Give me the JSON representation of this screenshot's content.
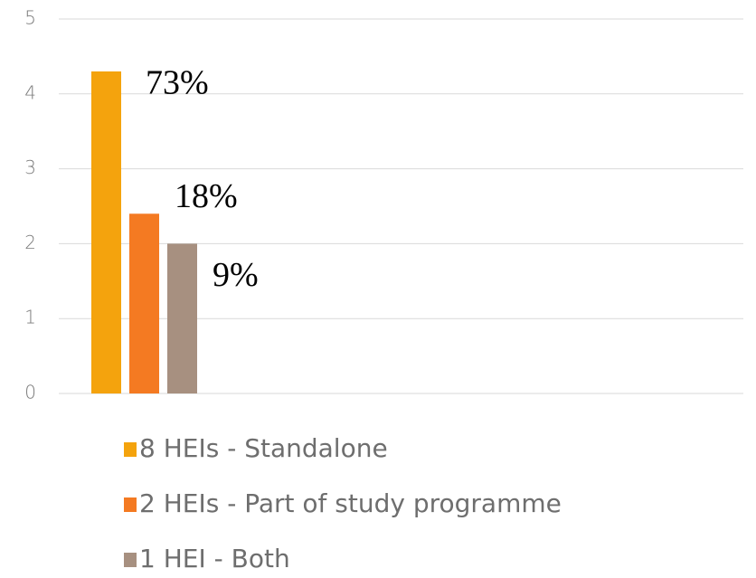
{
  "chart_data": {
    "type": "bar",
    "categories": [
      null
    ],
    "series": [
      {
        "name": "8 HEIs - Standalone",
        "color": "#f4a30d",
        "values": [
          4.3
        ]
      },
      {
        "name": "2 HEIs - Part of study programme",
        "color": "#f47a22",
        "values": [
          2.4
        ]
      },
      {
        "name": "1 HEI - Both",
        "color": "#a79080",
        "values": [
          2.0
        ]
      }
    ],
    "annotations": [
      "73%",
      "18%",
      "9%"
    ],
    "ylim": [
      0,
      5
    ],
    "yticks": [
      0,
      1,
      2,
      3,
      4,
      5
    ],
    "grid": true,
    "legend": "bottom"
  }
}
